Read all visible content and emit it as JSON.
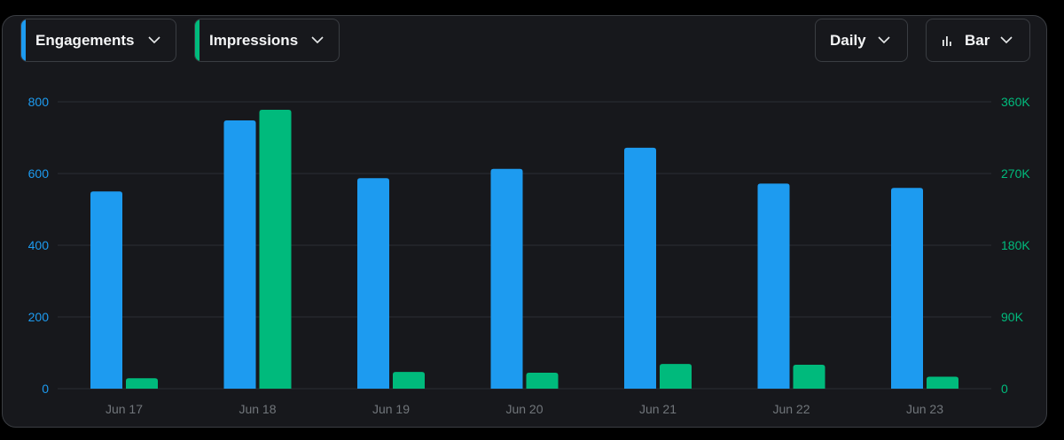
{
  "controls": {
    "metric1": {
      "label": "Engagements",
      "color": "#1d9bf0"
    },
    "metric2": {
      "label": "Impressions",
      "color": "#00ba7c"
    },
    "interval": {
      "label": "Daily"
    },
    "chart_type": {
      "label": "Bar",
      "icon": "bar-chart-icon"
    }
  },
  "chart_data": {
    "type": "bar",
    "categories": [
      "Jun 17",
      "Jun 18",
      "Jun 19",
      "Jun 20",
      "Jun 21",
      "Jun 22",
      "Jun 23"
    ],
    "series": [
      {
        "name": "Engagements",
        "axis": "left",
        "color": "#1d9bf0",
        "values": [
          550,
          748,
          587,
          613,
          672,
          572,
          560
        ]
      },
      {
        "name": "Impressions",
        "axis": "right",
        "color": "#00ba7c",
        "values": [
          13000,
          350000,
          21000,
          20000,
          31000,
          30000,
          15000
        ]
      }
    ],
    "y_left": {
      "ticks": [
        0,
        200,
        400,
        600,
        800
      ],
      "tick_labels": [
        "0",
        "200",
        "400",
        "600",
        "800"
      ],
      "range": [
        0,
        800
      ]
    },
    "y_right": {
      "ticks": [
        0,
        90000,
        180000,
        270000,
        360000
      ],
      "tick_labels": [
        "0",
        "90K",
        "180K",
        "270K",
        "360K"
      ],
      "range": [
        0,
        360000
      ]
    },
    "grid": true,
    "legend": "top-left dropdowns"
  }
}
